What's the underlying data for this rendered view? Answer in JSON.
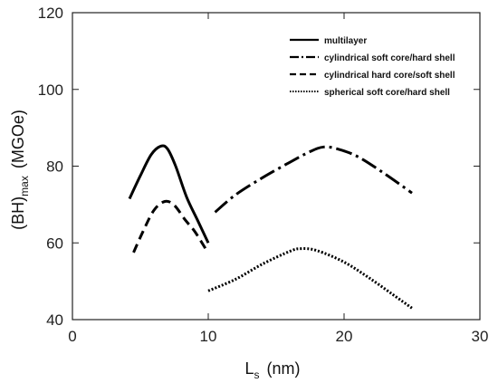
{
  "chart_data": {
    "type": "line",
    "title": "",
    "xlabel": {
      "main": "L",
      "subscript": "s",
      "unit": "(nm)"
    },
    "ylabel": {
      "main": "(BH)",
      "subscript": "max",
      "unit": "(MGOe)"
    },
    "xlim": [
      0,
      30
    ],
    "ylim": [
      40,
      120
    ],
    "x_ticks": [
      0,
      10,
      20,
      30
    ],
    "y_ticks": [
      40,
      60,
      80,
      100,
      120
    ],
    "grid": false,
    "legend_position": "top-right",
    "series": [
      {
        "name": "multilayer",
        "style": "solid",
        "x": [
          4.2,
          5.0,
          5.8,
          6.5,
          7.0,
          7.6,
          8.4,
          9.2,
          10.0
        ],
        "y": [
          71.5,
          77.5,
          83.0,
          85.2,
          84.5,
          80.0,
          72.0,
          66.0,
          60.0
        ]
      },
      {
        "name": "cylindrical soft core/hard shell",
        "style": "dashdot",
        "x": [
          10.5,
          12.0,
          14.0,
          16.0,
          17.5,
          18.5,
          19.5,
          21.0,
          23.0,
          25.0
        ],
        "y": [
          68.0,
          72.5,
          77.0,
          81.0,
          83.8,
          85.0,
          84.5,
          82.5,
          78.0,
          73.0
        ]
      },
      {
        "name": "cylindrical hard core/soft shell",
        "style": "dashed",
        "x": [
          4.5,
          5.2,
          6.0,
          6.8,
          7.5,
          8.3,
          9.0,
          9.8
        ],
        "y": [
          57.5,
          63.0,
          68.5,
          70.8,
          69.8,
          66.0,
          63.0,
          58.5
        ]
      },
      {
        "name": "spherical soft core/hard shell",
        "style": "dotted",
        "x": [
          10.0,
          12.0,
          14.0,
          16.0,
          16.8,
          18.0,
          20.0,
          22.0,
          24.0,
          25.0
        ],
        "y": [
          47.5,
          50.5,
          54.5,
          57.8,
          58.5,
          58.0,
          55.0,
          50.5,
          45.5,
          43.0
        ]
      }
    ]
  }
}
